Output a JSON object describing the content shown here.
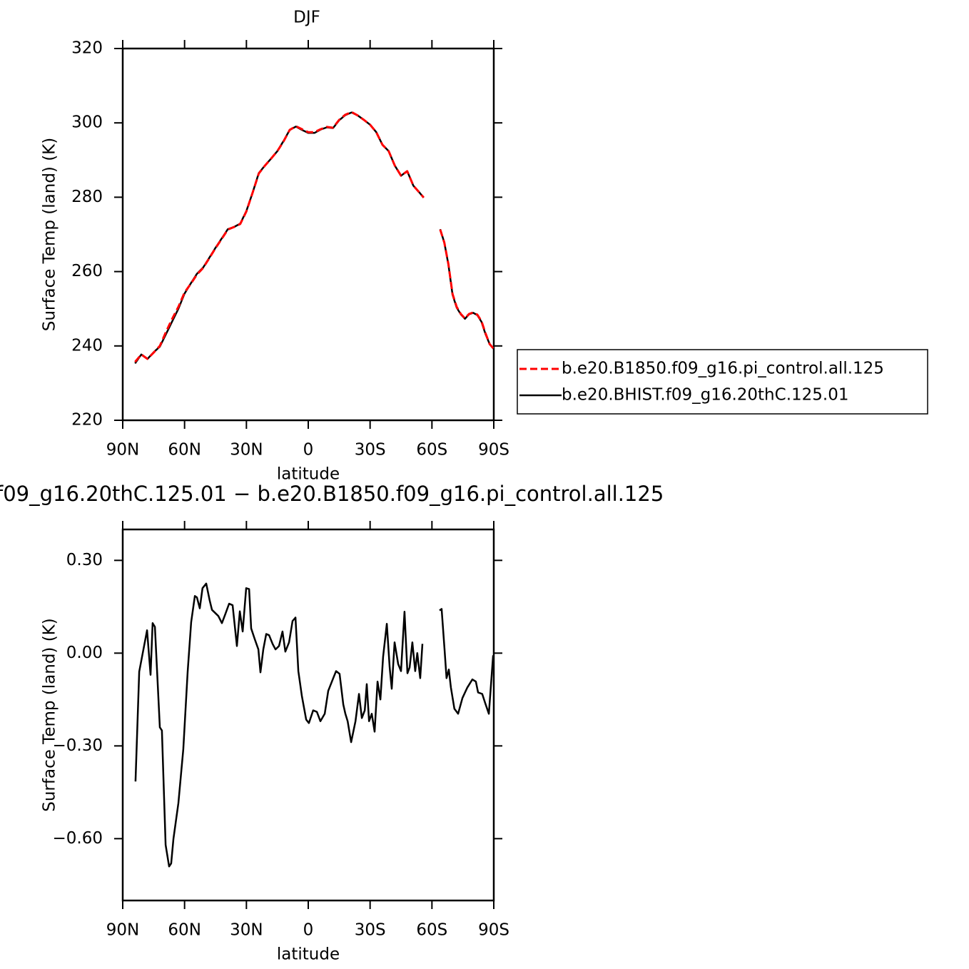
{
  "chart_data": [
    {
      "type": "line",
      "title": "DJF",
      "xlabel": "latitude",
      "ylabel": "Surface Temp (land) (K)",
      "x": [
        84,
        81,
        78,
        75,
        72,
        69,
        66,
        63,
        60,
        57,
        54,
        51,
        48,
        45,
        42,
        39,
        36,
        33,
        30,
        27,
        24,
        21,
        18,
        15,
        12,
        9,
        6,
        3,
        0,
        -3,
        -6,
        -9,
        -12,
        -15,
        -18,
        -21,
        -24,
        -27,
        -30,
        -33,
        -36,
        -39,
        -42,
        -45,
        -48,
        -51,
        -54,
        -56,
        -60,
        -64,
        -66,
        -68,
        -70,
        -72,
        -74,
        -76,
        -78,
        -80,
        -82,
        -84,
        -86,
        -88,
        -90
      ],
      "series": [
        {
          "name": "b.e20.B1850.f09_g16.pi_control.all.125",
          "color": "#ff0000",
          "line_style": "dashed",
          "values": [
            235.7,
            237.7,
            236.5,
            238.2,
            240,
            243.8,
            247.3,
            250.5,
            254.4,
            256.7,
            259.2,
            261,
            263.6,
            266.3,
            268.8,
            271.3,
            272,
            272.8,
            276.2,
            281.2,
            286.4,
            288.5,
            290.4,
            292.4,
            295,
            298.1,
            299.1,
            298.3,
            297.5,
            297.5,
            298.3,
            298.9,
            298.7,
            300.8,
            302.2,
            302.9,
            302,
            300.8,
            299.5,
            297.5,
            294.1,
            292.4,
            288.5,
            285.8,
            287,
            283.1,
            281.2,
            279.9,
            null,
            271.3,
            267.8,
            262,
            254,
            250.5,
            248.6,
            247.4,
            248.6,
            249,
            248.4,
            246.7,
            243.4,
            240.5,
            239.2
          ]
        },
        {
          "name": "b.e20.BHIST.f09_g16.20thC.125.01",
          "color": "#000000",
          "line_style": "solid",
          "values": [
            235.3,
            237.7,
            236.5,
            238.3,
            239.8,
            243.2,
            246.6,
            250,
            254.1,
            256.8,
            259.4,
            261.1,
            263.7,
            266.4,
            268.9,
            271.4,
            272,
            272.9,
            276.3,
            281.2,
            286.5,
            288.5,
            290.4,
            292.4,
            295.1,
            298.1,
            299,
            298.1,
            297.3,
            297.3,
            298.2,
            298.8,
            298.6,
            300.7,
            302.1,
            302.8,
            302,
            300.8,
            299.5,
            297.5,
            294.1,
            292.4,
            288.5,
            285.8,
            287,
            283.1,
            281.2,
            279.9,
            null,
            271.4,
            267.8,
            261.9,
            253.8,
            250.3,
            248.5,
            247.3,
            248.5,
            248.9,
            248.3,
            246.5,
            243.2,
            240.5,
            239.2
          ]
        }
      ],
      "xlim": [
        90,
        -90
      ],
      "ylim": [
        220,
        320
      ],
      "xticks": [
        {
          "value": 90,
          "label": "90N"
        },
        {
          "value": 60,
          "label": "60N"
        },
        {
          "value": 30,
          "label": "30N"
        },
        0,
        {
          "value": -30,
          "label": "30S"
        },
        {
          "value": -60,
          "label": "60S"
        },
        {
          "value": -90,
          "label": "90S"
        }
      ],
      "yticks": [
        220,
        240,
        260,
        280,
        300,
        320
      ],
      "legend": "right"
    },
    {
      "type": "line",
      "title": "f09_g16.20thC.125.01 − b.e20.B1850.f09_g16.pi_control.all.125",
      "xlabel": "latitude",
      "ylabel": "Surface Temp (land) (K)",
      "x": [
        83.8,
        82,
        78.2,
        76.5,
        75.5,
        74.4,
        72,
        71,
        69.2,
        67.5,
        66.5,
        65.4,
        63,
        60.6,
        58.5,
        56.8,
        55,
        54,
        52.6,
        51.3,
        49.5,
        47.8,
        46.7,
        43.6,
        41.9,
        40.2,
        38.4,
        36.7,
        34.6,
        33.2,
        31.8,
        30.1,
        28.7,
        27.7,
        26,
        24.2,
        23.2,
        21.8,
        20.4,
        19,
        17.3,
        15.9,
        14.2,
        12.5,
        11.1,
        9.3,
        7.6,
        6.2,
        4.8,
        3.1,
        1,
        -0.3,
        -2.4,
        -4.2,
        -5.9,
        -8,
        -9.7,
        -12.1,
        -13.5,
        -15.2,
        -17,
        -18,
        -19.1,
        -20.8,
        -22.9,
        -24.6,
        -26,
        -27.4,
        -28.4,
        -29.5,
        -30.8,
        -32.2,
        -33.6,
        -35,
        -36.3,
        -38.1,
        -39.5,
        -40.5,
        -41.9,
        -43.6,
        -45,
        -46.7,
        -48.1,
        -49.2,
        -50.5,
        -51.9,
        -52.9,
        -54.3,
        -55.4,
        -60,
        -63.7,
        -64.7,
        -66.1,
        -67.1,
        -68.2,
        -69.2,
        -70.9,
        -72.7,
        -74.8,
        -77.2,
        -79.6,
        -81.3,
        -82.4,
        -84.4,
        -85.8,
        -87.6,
        -89.7
      ],
      "color": "#000000",
      "values": [
        -0.415,
        -0.06,
        0.074,
        -0.07,
        0.097,
        0.085,
        -0.24,
        -0.25,
        -0.62,
        -0.69,
        -0.68,
        -0.6,
        -0.485,
        -0.31,
        -0.06,
        0.1,
        0.185,
        0.18,
        0.145,
        0.21,
        0.225,
        0.17,
        0.14,
        0.12,
        0.097,
        0.127,
        0.16,
        0.155,
        0.023,
        0.135,
        0.07,
        0.21,
        0.207,
        0.08,
        0.046,
        0.012,
        -0.062,
        0.012,
        0.062,
        0.058,
        0.03,
        0.012,
        0.023,
        0.07,
        0.005,
        0.035,
        0.104,
        0.115,
        -0.058,
        -0.138,
        -0.215,
        -0.226,
        -0.185,
        -0.19,
        -0.22,
        -0.196,
        -0.122,
        -0.081,
        -0.058,
        -0.067,
        -0.166,
        -0.196,
        -0.22,
        -0.288,
        -0.22,
        -0.132,
        -0.21,
        -0.185,
        -0.1,
        -0.22,
        -0.196,
        -0.254,
        -0.092,
        -0.15,
        -0.012,
        0.095,
        -0.046,
        -0.115,
        0.035,
        -0.035,
        -0.058,
        0.134,
        -0.065,
        -0.046,
        0.035,
        -0.058,
        0,
        -0.081,
        0.03,
        null,
        0.138,
        0.143,
        0.012,
        -0.081,
        -0.053,
        -0.111,
        -0.18,
        -0.196,
        -0.145,
        -0.111,
        -0.085,
        -0.092,
        -0.127,
        -0.132,
        -0.161,
        -0.196,
        -0.007
      ],
      "xlim": [
        90,
        -90
      ],
      "ylim": [
        -0.8,
        0.4
      ],
      "xticks": [
        {
          "value": 90,
          "label": "90N"
        },
        {
          "value": 60,
          "label": "60N"
        },
        {
          "value": 30,
          "label": "30N"
        },
        0,
        {
          "value": -30,
          "label": "30S"
        },
        {
          "value": -60,
          "label": "60S"
        },
        {
          "value": -90,
          "label": "90S"
        }
      ],
      "yticks": [
        {
          "value": 0.3,
          "label": "0.30"
        },
        {
          "value": 0,
          "label": "0.00"
        },
        {
          "value": -0.3,
          "label": "−0.30"
        },
        {
          "value": -0.6,
          "label": "−0.60"
        }
      ]
    }
  ]
}
